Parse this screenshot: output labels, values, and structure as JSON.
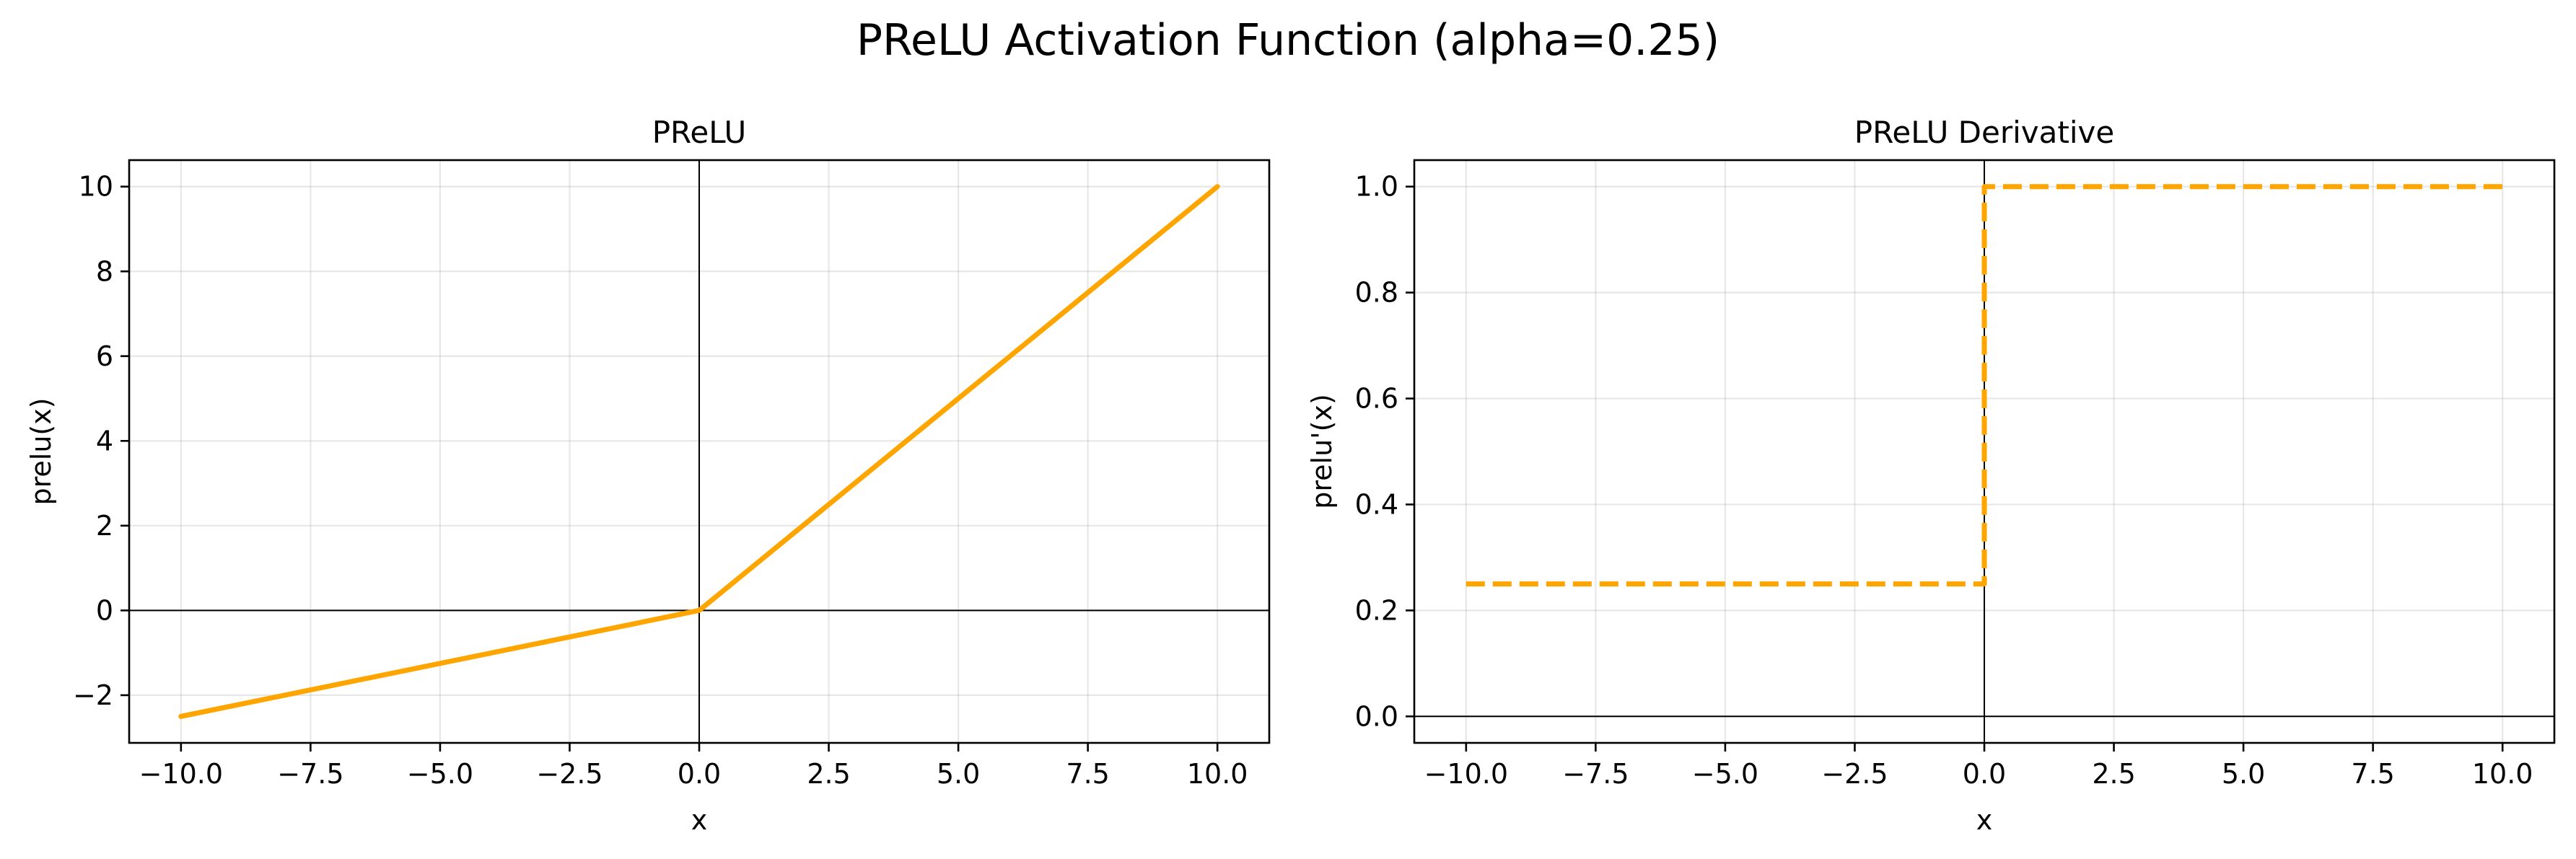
{
  "figure": {
    "title": "PReLU Activation Function (alpha=0.25)"
  },
  "colors": {
    "series": "#FFA500",
    "axis": "#000000"
  },
  "chart_data": [
    {
      "type": "line",
      "title": "PReLU",
      "xlabel": "x",
      "ylabel": "prelu(x)",
      "xlim": [
        -11.0,
        11.0
      ],
      "ylim": [
        -3.125,
        10.625
      ],
      "xticks": [
        -10.0,
        -7.5,
        -5.0,
        -2.5,
        0.0,
        2.5,
        5.0,
        7.5,
        10.0
      ],
      "xtick_labels": [
        "−10.0",
        "−7.5",
        "−5.0",
        "−2.5",
        "0.0",
        "2.5",
        "5.0",
        "7.5",
        "10.0"
      ],
      "yticks": [
        -2,
        0,
        2,
        4,
        6,
        8,
        10
      ],
      "ytick_labels": [
        "−2",
        "0",
        "2",
        "4",
        "6",
        "8",
        "10"
      ],
      "grid": true,
      "reference_lines": {
        "x": 0,
        "y": 0
      },
      "series": [
        {
          "line_style": "solid",
          "x": [
            -10,
            0,
            10
          ],
          "y": [
            -2.5,
            0,
            10
          ]
        }
      ]
    },
    {
      "type": "line",
      "title": "PReLU Derivative",
      "xlabel": "x",
      "ylabel": "prelu'(x)",
      "xlim": [
        -11.0,
        11.0
      ],
      "ylim": [
        -0.05,
        1.05
      ],
      "xticks": [
        -10.0,
        -7.5,
        -5.0,
        -2.5,
        0.0,
        2.5,
        5.0,
        7.5,
        10.0
      ],
      "xtick_labels": [
        "−10.0",
        "−7.5",
        "−5.0",
        "−2.5",
        "0.0",
        "2.5",
        "5.0",
        "7.5",
        "10.0"
      ],
      "yticks": [
        0.0,
        0.2,
        0.4,
        0.6,
        0.8,
        1.0
      ],
      "ytick_labels": [
        "0.0",
        "0.2",
        "0.4",
        "0.6",
        "0.8",
        "1.0"
      ],
      "grid": true,
      "reference_lines": {
        "x": 0,
        "y": 0
      },
      "series": [
        {
          "line_style": "dashed",
          "x": [
            -10,
            0,
            0,
            10
          ],
          "y": [
            0.25,
            0.25,
            1.0,
            1.0
          ]
        }
      ]
    }
  ]
}
